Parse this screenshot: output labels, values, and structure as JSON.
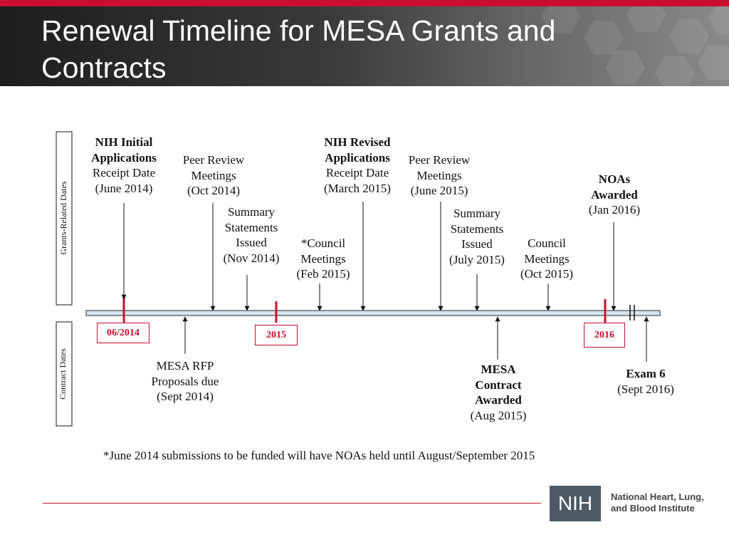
{
  "slide": {
    "title": "Renewal Timeline for MESA Grants and Contracts",
    "accent_color": "#c8102e"
  },
  "diagram": {
    "section_labels": {
      "grants": "Grants-Related Dates",
      "contracts": "Contract Dates"
    },
    "year_markers": [
      "06/2014",
      "2015",
      "2016"
    ],
    "grant_events": [
      {
        "lines": [
          "NIH Initial",
          "Applications",
          "Receipt Date",
          "(June 2014)"
        ],
        "bold_lines": 2
      },
      {
        "lines": [
          "Peer Review",
          "Meetings",
          "(Oct 2014)"
        ],
        "bold_lines": 0
      },
      {
        "lines": [
          "Summary",
          "Statements",
          "Issued",
          "(Nov 2014)"
        ],
        "bold_lines": 0
      },
      {
        "lines": [
          "*Council",
          "Meetings",
          "(Feb 2015)"
        ],
        "bold_lines": 0
      },
      {
        "lines": [
          "NIH Revised",
          "Applications",
          "Receipt Date",
          "(March 2015)"
        ],
        "bold_lines": 2
      },
      {
        "lines": [
          "Peer Review",
          "Meetings",
          "(June 2015)"
        ],
        "bold_lines": 0
      },
      {
        "lines": [
          "Summary",
          "Statements",
          "Issued",
          "(July 2015)"
        ],
        "bold_lines": 0
      },
      {
        "lines": [
          "Council",
          "Meetings",
          "(Oct 2015)"
        ],
        "bold_lines": 0
      },
      {
        "lines": [
          "NOAs",
          "Awarded",
          "(Jan 2016)"
        ],
        "bold_lines": 2
      }
    ],
    "contract_events": [
      {
        "lines": [
          "MESA RFP",
          "Proposals due",
          "(Sept 2014)"
        ],
        "bold_lines": 0
      },
      {
        "lines": [
          "MESA",
          "Contract",
          "Awarded",
          "(Aug 2015)"
        ],
        "bold_lines": 3
      },
      {
        "lines": [
          "Exam 6",
          "(Sept 2016)"
        ],
        "bold_lines": 1
      }
    ],
    "footnote": "*June 2014 submissions to be funded will have NOAs held until August/September 2015"
  },
  "footer": {
    "logo_text": "NIH",
    "institute_lines": [
      "National Heart, Lung,",
      "and Blood Institute"
    ]
  }
}
